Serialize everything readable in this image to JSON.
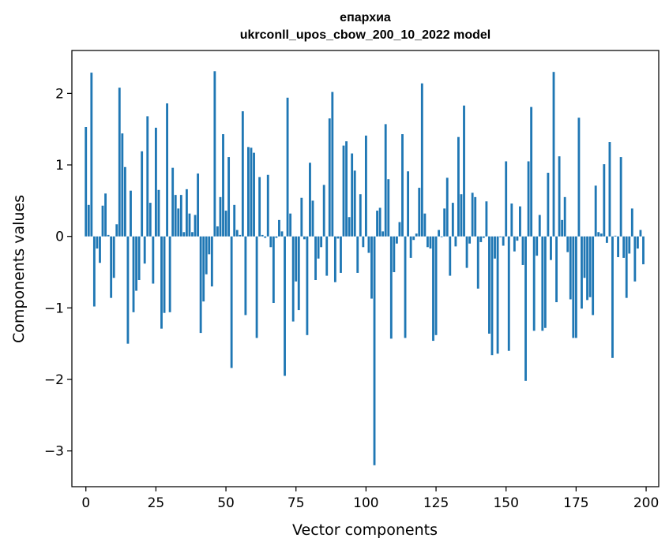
{
  "title_line1": "епархиа",
  "title_line2": "ukrconll_upos_cbow_200_10_2022 model",
  "chart_data": {
    "type": "bar",
    "title": "епархиа ukrconll_upos_cbow_200_10_2022 model",
    "xlabel": "Vector components",
    "ylabel": "Components values",
    "xlim": [
      -5,
      204.5
    ],
    "ylim": [
      -3.5,
      2.6
    ],
    "xticks": [
      0,
      25,
      50,
      75,
      100,
      125,
      150,
      175,
      200
    ],
    "xtick_labels": [
      "0",
      "25",
      "50",
      "75",
      "100",
      "125",
      "150",
      "175",
      "200"
    ],
    "yticks": [
      -3,
      -2,
      -1,
      0,
      1,
      2
    ],
    "ytick_labels": [
      "−3",
      "−2",
      "−1",
      "0",
      "1",
      "2"
    ],
    "bar_color": "#1f77b4",
    "grid": false,
    "x": [
      0,
      1,
      2,
      3,
      4,
      5,
      6,
      7,
      8,
      9,
      10,
      11,
      12,
      13,
      14,
      15,
      16,
      17,
      18,
      19,
      20,
      21,
      22,
      23,
      24,
      25,
      26,
      27,
      28,
      29,
      30,
      31,
      32,
      33,
      34,
      35,
      36,
      37,
      38,
      39,
      40,
      41,
      42,
      43,
      44,
      45,
      46,
      47,
      48,
      49,
      50,
      51,
      52,
      53,
      54,
      55,
      56,
      57,
      58,
      59,
      60,
      61,
      62,
      63,
      64,
      65,
      66,
      67,
      68,
      69,
      70,
      71,
      72,
      73,
      74,
      75,
      76,
      77,
      78,
      79,
      80,
      81,
      82,
      83,
      84,
      85,
      86,
      87,
      88,
      89,
      90,
      91,
      92,
      93,
      94,
      95,
      96,
      97,
      98,
      99,
      100,
      101,
      102,
      103,
      104,
      105,
      106,
      107,
      108,
      109,
      110,
      111,
      112,
      113,
      114,
      115,
      116,
      117,
      118,
      119,
      120,
      121,
      122,
      123,
      124,
      125,
      126,
      127,
      128,
      129,
      130,
      131,
      132,
      133,
      134,
      135,
      136,
      137,
      138,
      139,
      140,
      141,
      142,
      143,
      144,
      145,
      146,
      147,
      148,
      149,
      150,
      151,
      152,
      153,
      154,
      155,
      156,
      157,
      158,
      159,
      160,
      161,
      162,
      163,
      164,
      165,
      166,
      167,
      168,
      169,
      170,
      171,
      172,
      173,
      174,
      175,
      176,
      177,
      178,
      179,
      180,
      181,
      182,
      183,
      184,
      185,
      186,
      187,
      188,
      189,
      190,
      191,
      192,
      193,
      194,
      195,
      196,
      197,
      198,
      199
    ],
    "values": [
      1.53,
      0.44,
      2.29,
      -0.98,
      -0.17,
      -0.37,
      0.43,
      0.6,
      0.02,
      -0.86,
      -0.58,
      0.17,
      2.08,
      1.44,
      0.97,
      -1.5,
      0.64,
      -1.06,
      -0.76,
      -0.61,
      1.19,
      -0.38,
      1.68,
      0.47,
      -0.66,
      1.52,
      0.65,
      -1.29,
      -1.07,
      1.86,
      -1.06,
      0.96,
      0.58,
      0.39,
      0.58,
      0.06,
      0.66,
      0.32,
      0.06,
      0.3,
      0.88,
      -1.35,
      -0.91,
      -0.53,
      -0.25,
      -0.7,
      2.31,
      0.14,
      0.55,
      1.43,
      0.36,
      1.11,
      -1.84,
      0.44,
      0.09,
      0.02,
      1.75,
      -1.1,
      1.25,
      1.24,
      1.17,
      -1.42,
      0.83,
      0.02,
      -0.02,
      0.86,
      -0.15,
      -0.93,
      -0.02,
      0.23,
      0.07,
      -1.95,
      1.94,
      0.32,
      -1.19,
      -0.63,
      -1.03,
      0.54,
      -0.04,
      -1.38,
      1.03,
      0.5,
      -0.61,
      -0.31,
      -0.15,
      0.72,
      -0.55,
      1.65,
      2.02,
      -0.64,
      -0.03,
      -0.51,
      1.27,
      1.33,
      0.27,
      1.16,
      0.92,
      -0.51,
      0.59,
      -0.15,
      1.41,
      -0.23,
      -0.87,
      -3.2,
      0.36,
      0.4,
      0.07,
      1.57,
      0.8,
      -1.43,
      -0.5,
      -0.1,
      0.2,
      1.43,
      -1.42,
      0.91,
      -0.3,
      -0.05,
      0.04,
      0.68,
      2.14,
      0.32,
      -0.15,
      -0.17,
      -1.46,
      -1.38,
      0.09,
      -0.01,
      0.39,
      0.82,
      -0.55,
      0.47,
      -0.14,
      1.39,
      0.59,
      1.83,
      -0.44,
      -0.1,
      0.61,
      0.55,
      -0.73,
      -0.08,
      -0.02,
      0.49,
      -1.36,
      -1.66,
      -0.31,
      -1.64,
      -0.01,
      -0.13,
      1.05,
      -1.6,
      0.46,
      -0.21,
      -0.06,
      0.42,
      -0.4,
      -2.02,
      1.05,
      1.81,
      -1.32,
      -0.27,
      0.3,
      -1.32,
      -1.28,
      0.89,
      -0.33,
      2.3,
      -0.92,
      1.12,
      0.23,
      0.55,
      -0.22,
      -0.88,
      -1.42,
      -1.42,
      1.66,
      -1.01,
      -0.58,
      -0.89,
      -0.85,
      -1.1,
      0.71,
      0.06,
      0.04,
      1.01,
      -0.09,
      1.32,
      -1.7,
      0.01,
      -0.29,
      1.11,
      -0.3,
      -0.86,
      -0.24,
      0.39,
      -0.63,
      -0.17,
      0.09,
      -0.39
    ]
  }
}
